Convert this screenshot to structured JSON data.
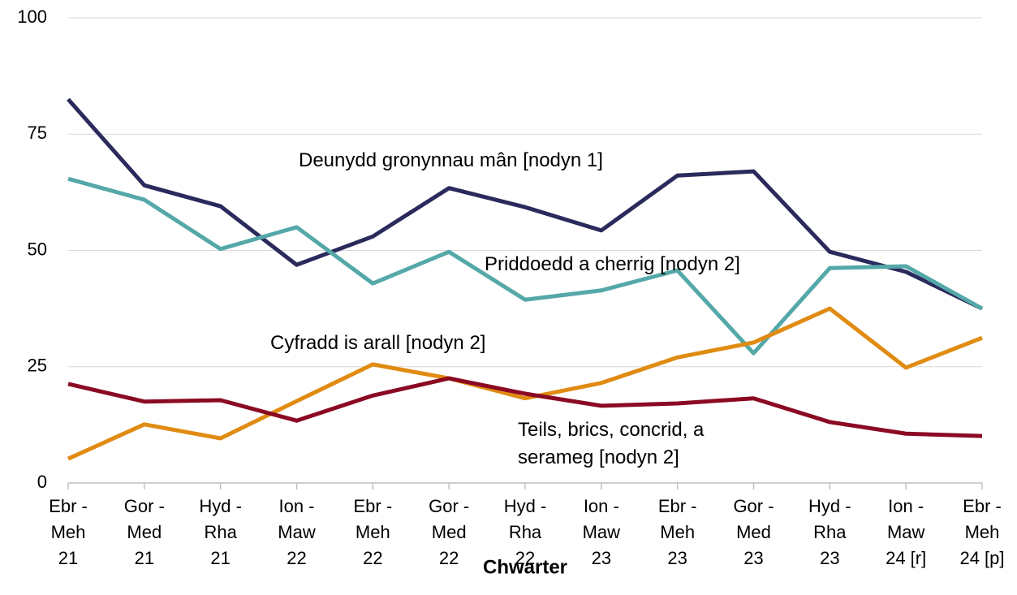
{
  "chart_data": {
    "type": "line",
    "x_label": "Chwarter",
    "categories": [
      [
        "Ebr -",
        "Meh",
        "21"
      ],
      [
        "Gor -",
        "Med",
        "21"
      ],
      [
        "Hyd -",
        "Rha",
        "21"
      ],
      [
        "Ion -",
        "Maw",
        "22"
      ],
      [
        "Ebr -",
        "Meh",
        "22"
      ],
      [
        "Gor -",
        "Med",
        "22"
      ],
      [
        "Hyd -",
        "Rha",
        "22"
      ],
      [
        "Ion -",
        "Maw",
        "23"
      ],
      [
        "Ebr -",
        "Meh",
        "23"
      ],
      [
        "Gor -",
        "Med",
        "23"
      ],
      [
        "Hyd -",
        "Rha",
        "23"
      ],
      [
        "Ion -",
        "Maw",
        "24 [r]"
      ],
      [
        "Ebr -",
        "Meh",
        "24 [p]"
      ]
    ],
    "series": [
      {
        "name": "Deunydd gronynnau mân  [nodyn 1]",
        "color": "#2b2a5c",
        "values": [
          82.5,
          64,
          59.5,
          46.9,
          53,
          63.4,
          59.3,
          54.3,
          66.1,
          67,
          49.7,
          45.4,
          37.5
        ]
      },
      {
        "name": "Priddoedd a cherrig [nodyn 2]",
        "color": "#55a8a8",
        "values": [
          65.4,
          60.9,
          50.3,
          55,
          42.9,
          49.7,
          39.4,
          41.4,
          45.7,
          27.9,
          46.2,
          46.6,
          37.5
        ]
      },
      {
        "name": "Cyfradd is arall [nodyn 2]",
        "color": "#e08b12",
        "values": [
          5.2,
          12.6,
          9.6,
          17.6,
          25.5,
          22.5,
          18.2,
          21.5,
          27,
          30.2,
          37.5,
          24.8,
          31.2
        ]
      },
      {
        "name": "Teils, brics, concrid, a serameg [nodyn 2]",
        "color": "#8b0a23",
        "values": [
          21.3,
          17.5,
          17.8,
          13.4,
          18.8,
          22.5,
          19.2,
          16.6,
          17.1,
          18.2,
          13.1,
          10.6,
          10.1
        ]
      }
    ],
    "ylim": [
      0,
      100
    ],
    "yticks": [
      0,
      25,
      50,
      75,
      100
    ],
    "grid": true
  }
}
